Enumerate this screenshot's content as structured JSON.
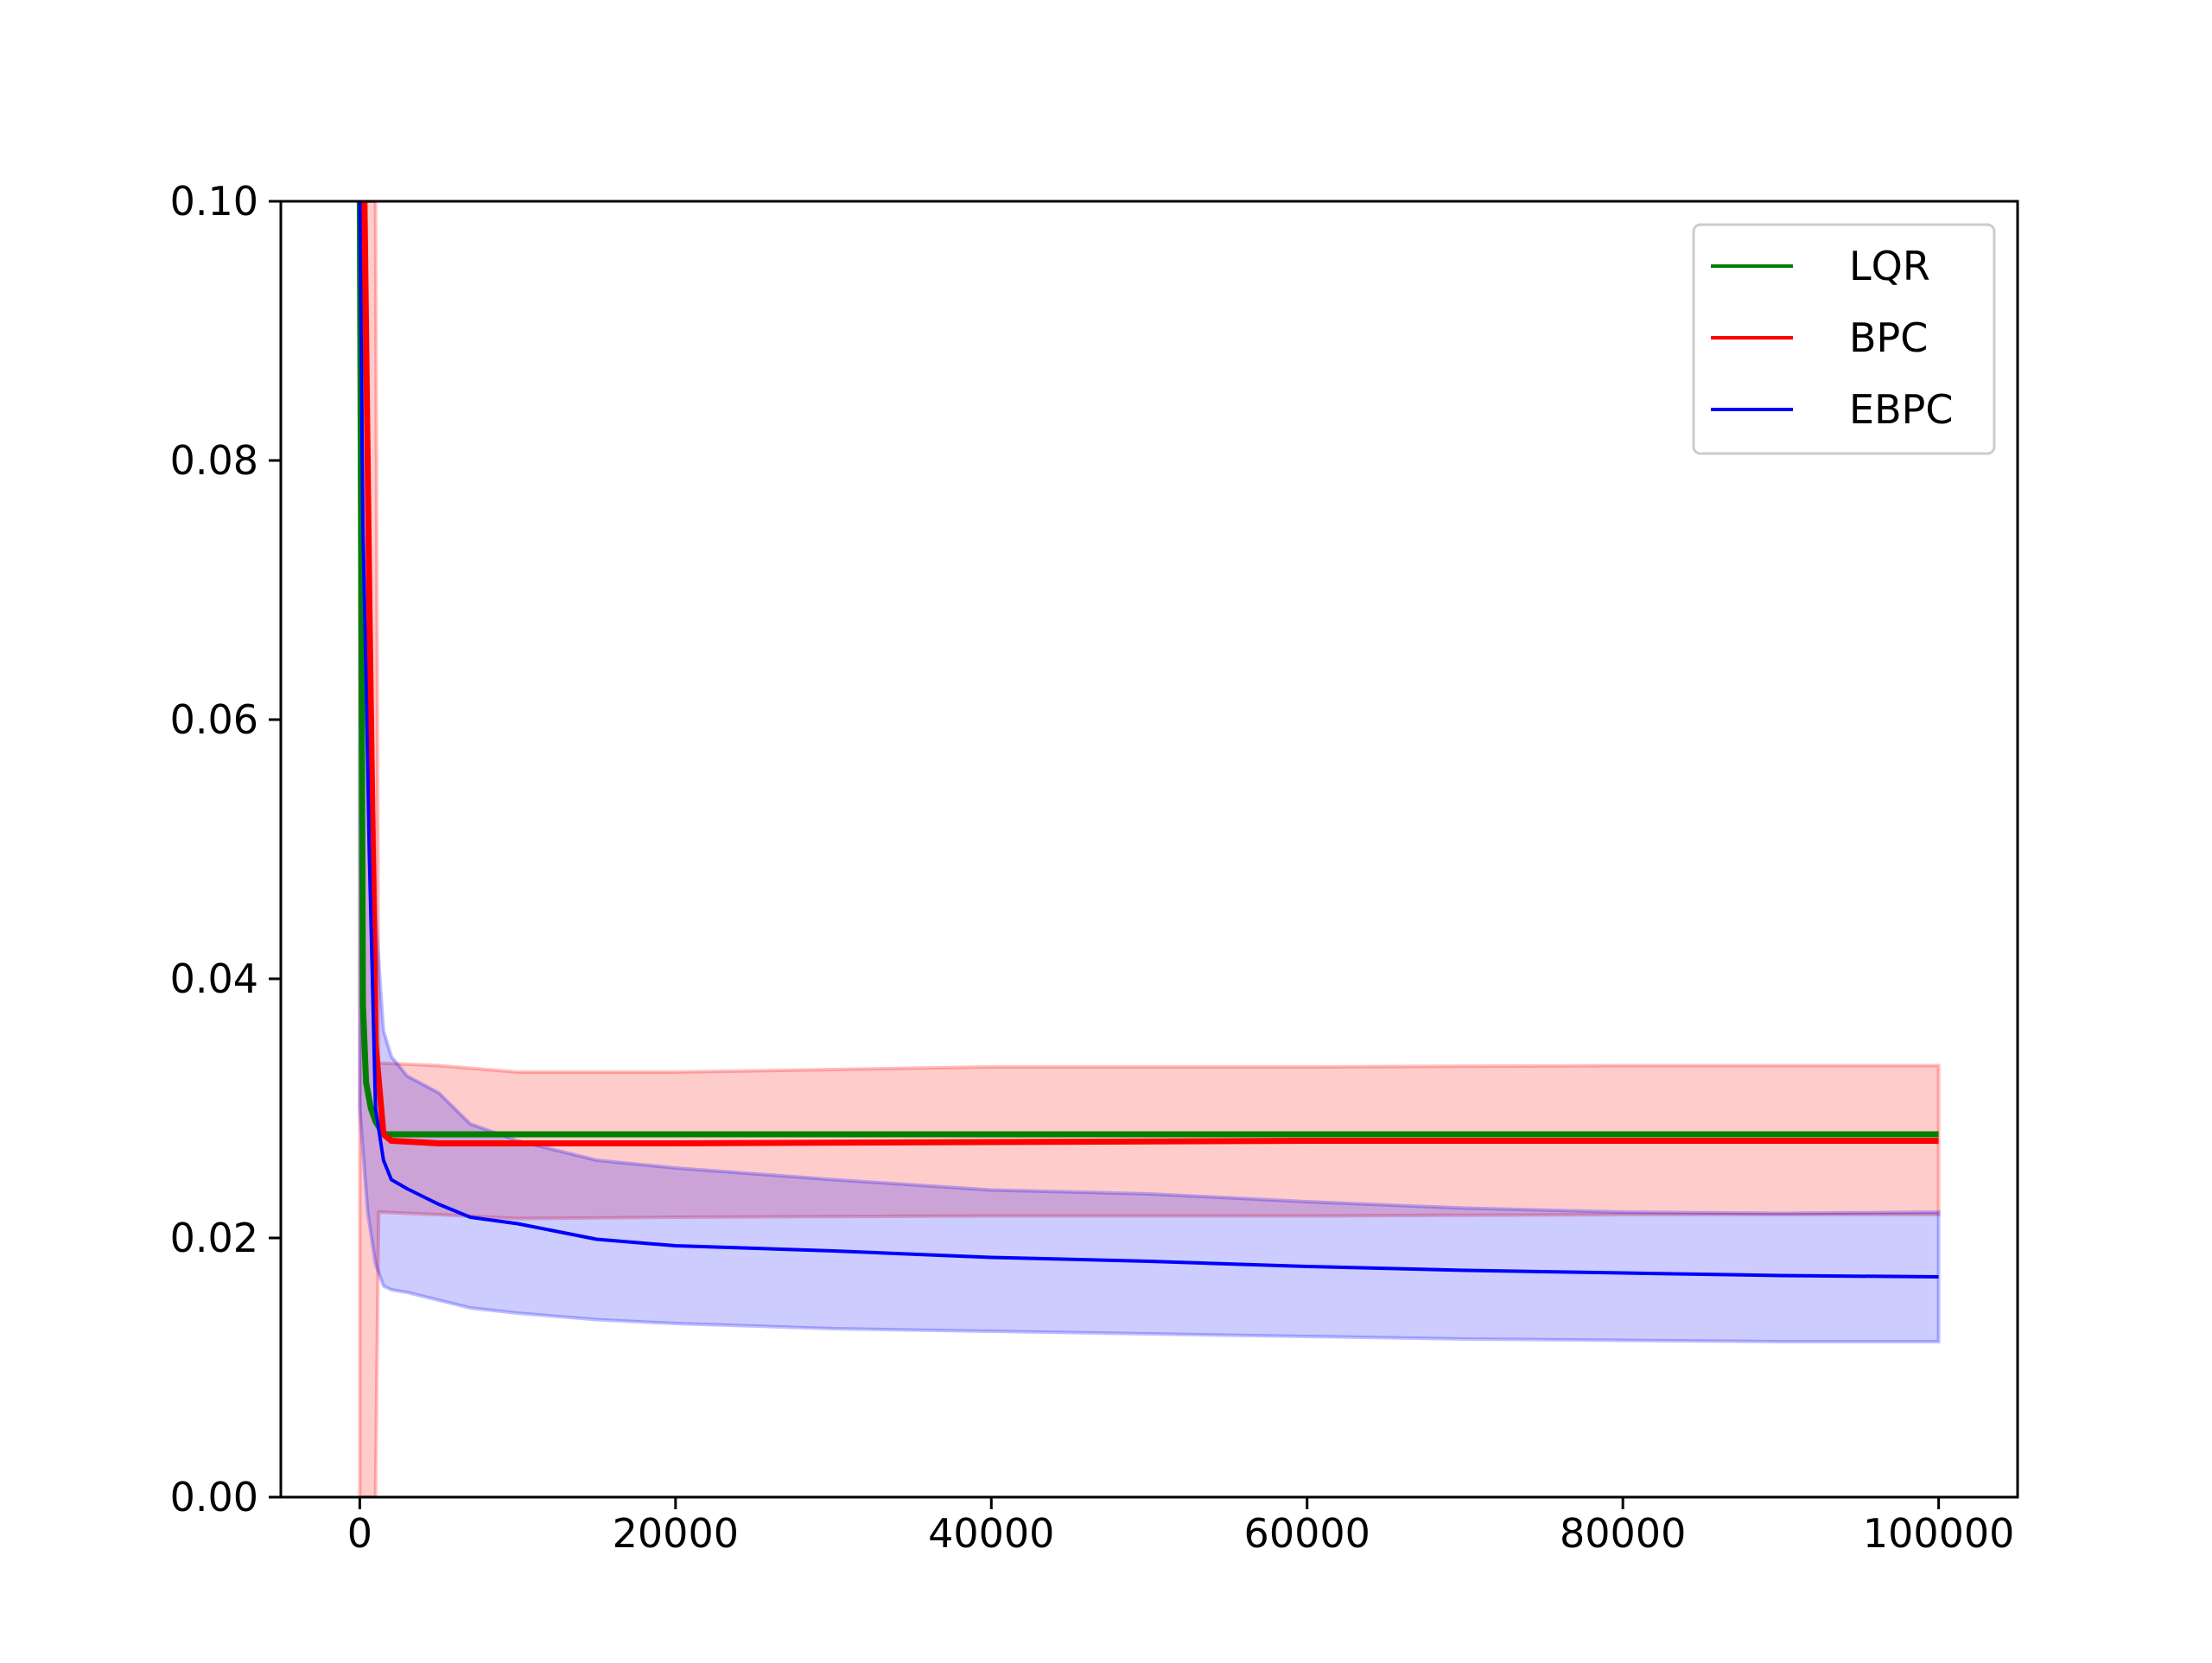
{
  "chart_data": {
    "type": "line",
    "title": "",
    "xlabel": "",
    "ylabel": "",
    "xlim": [
      -5000,
      105000
    ],
    "ylim": [
      0.0,
      0.1
    ],
    "xticks": [
      0,
      20000,
      40000,
      60000,
      80000,
      100000
    ],
    "xtick_labels": [
      "0",
      "20000",
      "40000",
      "60000",
      "80000",
      "100000"
    ],
    "yticks": [
      0.0,
      0.02,
      0.04,
      0.06,
      0.08,
      0.1
    ],
    "ytick_labels": [
      "0.00",
      "0.02",
      "0.04",
      "0.06",
      "0.08",
      "0.10"
    ],
    "grid": false,
    "legend_position": "upper right",
    "series": [
      {
        "name": "LQR",
        "color": "#008000",
        "x": [
          0,
          200,
          400,
          700,
          1000,
          1500,
          2000,
          5000,
          10000,
          30000,
          60000,
          100000
        ],
        "y": [
          0.1,
          0.038,
          0.032,
          0.03,
          0.029,
          0.028,
          0.028,
          0.028,
          0.028,
          0.028,
          0.028,
          0.028
        ],
        "band": null
      },
      {
        "name": "BPC",
        "color": "#ff0000",
        "x": [
          0,
          300,
          600,
          1000,
          1500,
          2000,
          5000,
          10000,
          20000,
          40000,
          60000,
          80000,
          100000
        ],
        "y": [
          0.1,
          0.1,
          0.07,
          0.035,
          0.028,
          0.0275,
          0.0273,
          0.0273,
          0.0273,
          0.0274,
          0.0275,
          0.0275,
          0.0275
        ],
        "band_color": "#ff0000",
        "band": {
          "x": [
            0,
            1000,
            1200,
            5000,
            10000,
            20000,
            40000,
            60000,
            80000,
            100000
          ],
          "upper": [
            0.1,
            0.1,
            0.0335,
            0.0333,
            0.0328,
            0.0328,
            0.0332,
            0.0332,
            0.0333,
            0.0333
          ],
          "lower": [
            0.0,
            0.0,
            0.022,
            0.0218,
            0.0215,
            0.0216,
            0.0217,
            0.0217,
            0.0218,
            0.0218
          ]
        }
      },
      {
        "name": "EBPC",
        "color": "#0000ff",
        "x": [
          0,
          200,
          400,
          600,
          800,
          1000,
          1500,
          2000,
          3000,
          5000,
          7000,
          10000,
          15000,
          20000,
          30000,
          40000,
          50000,
          60000,
          70000,
          80000,
          90000,
          100000
        ],
        "y": [
          0.1,
          0.075,
          0.063,
          0.05,
          0.04,
          0.03,
          0.026,
          0.0245,
          0.0238,
          0.0226,
          0.0216,
          0.0211,
          0.0199,
          0.0194,
          0.019,
          0.0185,
          0.0182,
          0.0178,
          0.0175,
          0.0173,
          0.0171,
          0.017
        ],
        "band_color": "#0000ff",
        "band": {
          "x": [
            0,
            500,
            1000,
            1500,
            2000,
            3000,
            5000,
            7000,
            10000,
            15000,
            20000,
            30000,
            40000,
            50000,
            60000,
            70000,
            80000,
            90000,
            100000
          ],
          "upper": [
            0.1,
            0.08,
            0.045,
            0.036,
            0.034,
            0.0325,
            0.0312,
            0.0288,
            0.0275,
            0.026,
            0.0254,
            0.0245,
            0.0237,
            0.0234,
            0.0228,
            0.0223,
            0.022,
            0.0219,
            0.022
          ],
          "lower": [
            0.03,
            0.022,
            0.018,
            0.0163,
            0.016,
            0.0158,
            0.0152,
            0.0146,
            0.0142,
            0.0137,
            0.0134,
            0.013,
            0.0128,
            0.0126,
            0.0124,
            0.0122,
            0.0121,
            0.012,
            0.012
          ]
        }
      }
    ]
  }
}
